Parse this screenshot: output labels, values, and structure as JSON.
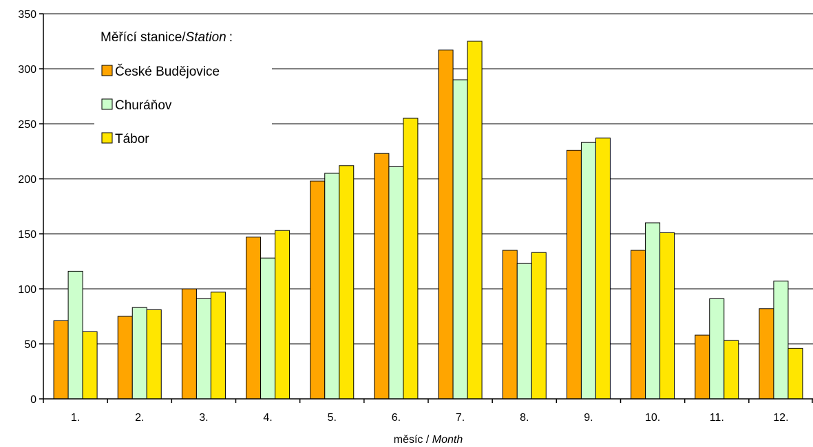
{
  "chart_data": {
    "type": "bar",
    "categories": [
      "1.",
      "2.",
      "3.",
      "4.",
      "5.",
      "6.",
      "7.",
      "8.",
      "9.",
      "10.",
      "11.",
      "12."
    ],
    "series": [
      {
        "name": "České Budějovice",
        "color": "#FFA500",
        "values": [
          71,
          75,
          100,
          147,
          198,
          223,
          317,
          135,
          226,
          135,
          58,
          82
        ]
      },
      {
        "name": "Churáňov",
        "color": "#CCFFCC",
        "values": [
          116,
          83,
          91,
          128,
          205,
          211,
          290,
          123,
          233,
          160,
          91,
          107
        ]
      },
      {
        "name": "Tábor",
        "color": "#FFE600",
        "values": [
          61,
          81,
          97,
          153,
          212,
          255,
          325,
          133,
          237,
          151,
          53,
          46
        ]
      }
    ],
    "xlabel": {
      "plain": "měsíc / ",
      "italic": "Month"
    },
    "legend": {
      "title_plain": "Měřící stanice/",
      "title_italic": "Station",
      "title_suffix": ":",
      "position": "top-left"
    },
    "ylim": [
      0,
      350
    ],
    "yticks": [
      0,
      50,
      100,
      150,
      200,
      250,
      300,
      350
    ],
    "grid": true
  }
}
